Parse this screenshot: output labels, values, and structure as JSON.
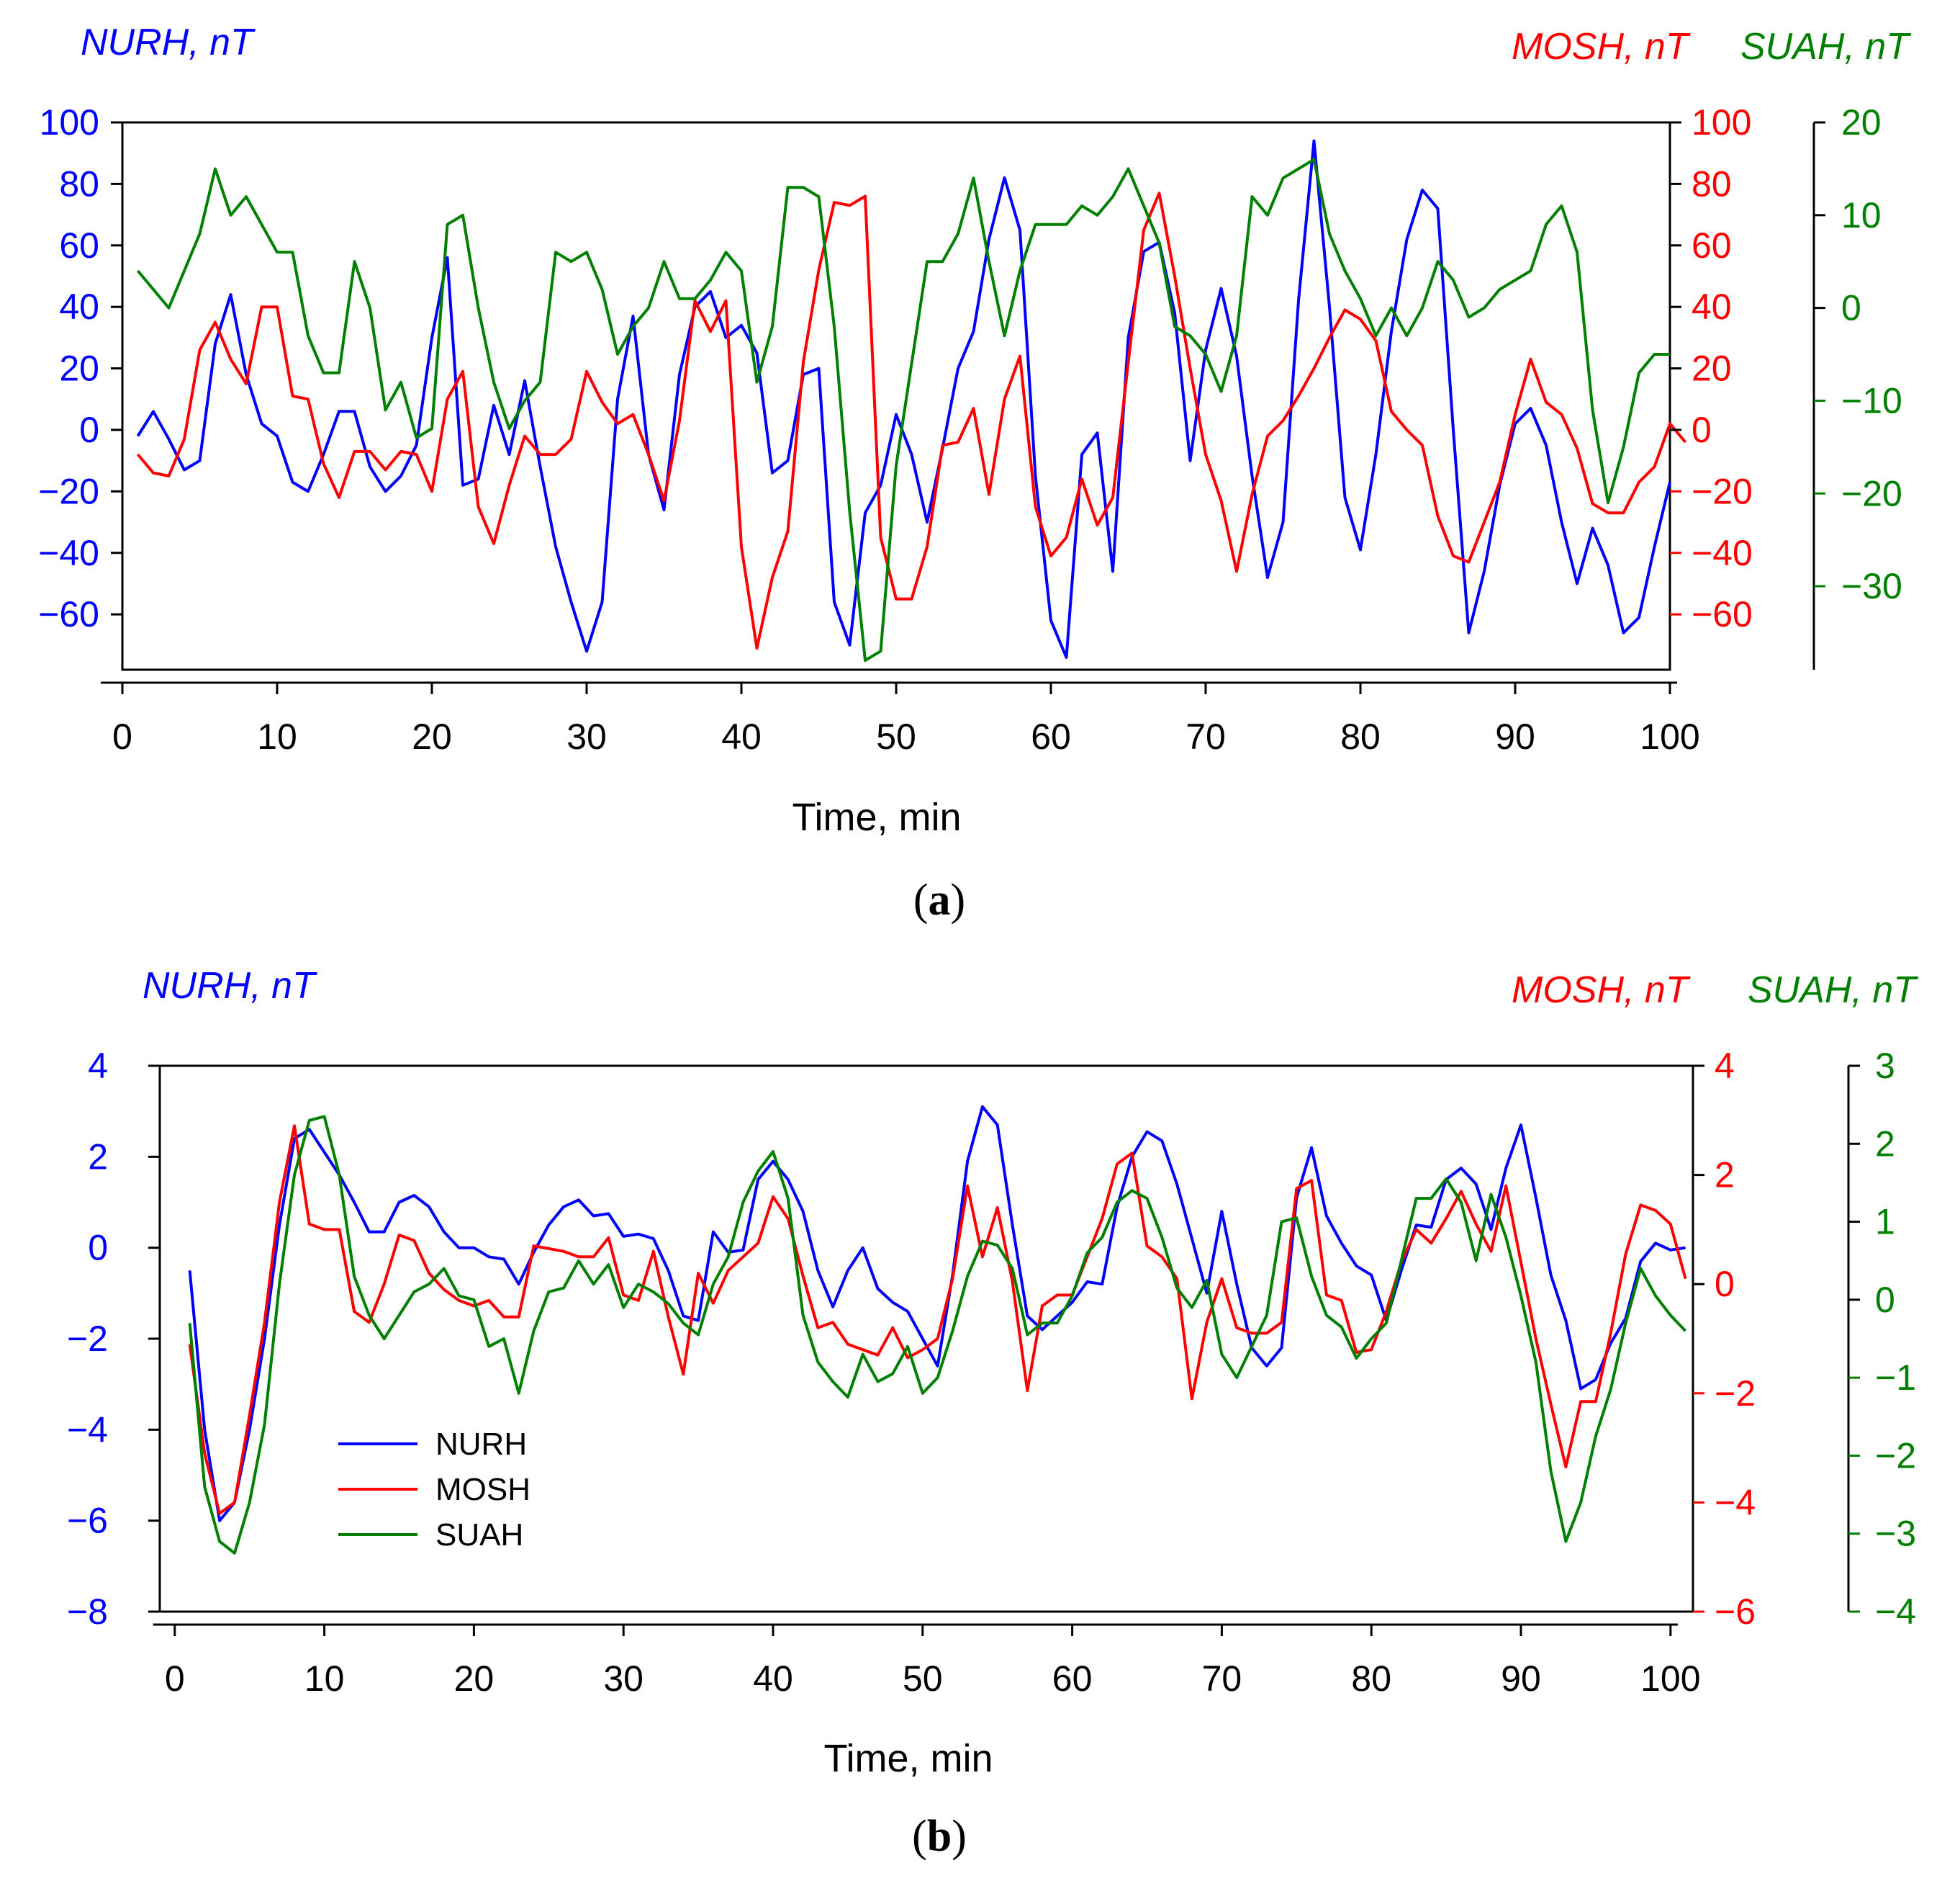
{
  "colors": {
    "NURH": "#0000ff",
    "MOSH": "#ff0000",
    "SUAH": "#008000",
    "axis": "#000000"
  },
  "chart_data": [
    {
      "type": "line",
      "panel_label": "a",
      "xlabel": "Time, min",
      "xlim": [
        0,
        100
      ],
      "x_ticks": [
        0,
        10,
        20,
        30,
        40,
        50,
        60,
        70,
        80,
        90,
        100
      ],
      "axes": {
        "left": {
          "series": "NURH",
          "label": "NURH, nT",
          "ylim": [
            -78,
            100
          ],
          "ticks": [
            -60,
            -40,
            -20,
            0,
            20,
            40,
            60,
            80,
            100
          ]
        },
        "right1": {
          "series": "MOSH",
          "label": "MOSH, nT",
          "ylim": [
            -78,
            100
          ],
          "ticks": [
            -60,
            -40,
            -20,
            0,
            20,
            40,
            60,
            80,
            100
          ]
        },
        "right2": {
          "series": "SUAH",
          "label": "SUAH, nT",
          "ylim": [
            -39,
            20
          ],
          "ticks": [
            -30,
            -20,
            -10,
            0,
            10,
            20
          ]
        }
      },
      "series": [
        {
          "name": "NURH",
          "axis": "left",
          "x_start": 1,
          "values": [
            -2,
            6,
            -3,
            -13,
            -10,
            28,
            44,
            18,
            2,
            -2,
            -17,
            -20,
            -8,
            6,
            6,
            -12,
            -20,
            -15,
            -5,
            30,
            56,
            -18,
            -16,
            8,
            -8,
            16,
            -12,
            -38,
            -56,
            -72,
            -56,
            10,
            37,
            -8,
            -26,
            18,
            40,
            45,
            30,
            34,
            25,
            -14,
            -10,
            18,
            20,
            -56,
            -70,
            -27,
            -18,
            5,
            -8,
            -30,
            -6,
            20,
            32,
            62,
            82,
            65,
            -15,
            -62,
            -74,
            -8,
            -1,
            -46,
            30,
            58,
            61,
            38,
            -10,
            26,
            46,
            24,
            -15,
            -48,
            -30,
            42,
            94,
            40,
            -22,
            -39,
            -8,
            32,
            62,
            78,
            72,
            0,
            -66,
            -46,
            -18,
            2,
            7,
            -5,
            -30,
            -50,
            -32,
            -44,
            -66,
            -61,
            -38,
            -17
          ]
        },
        {
          "name": "MOSH",
          "axis": "right1",
          "x_start": 1,
          "values": [
            -8,
            -14,
            -15,
            -3,
            26,
            35,
            23,
            15,
            40,
            40,
            11,
            10,
            -11,
            -22,
            -7,
            -7,
            -13,
            -7,
            -8,
            -20,
            10,
            19,
            -25,
            -37,
            -18,
            -2,
            -8,
            -8,
            -3,
            19,
            9,
            2,
            5,
            -8,
            -23,
            3,
            42,
            32,
            42,
            -38,
            -71,
            -48,
            -33,
            22,
            52,
            74,
            73,
            76,
            -35,
            -55,
            -55,
            -38,
            -5,
            -4,
            7,
            -21,
            10,
            24,
            -25,
            -41,
            -35,
            -16,
            -31,
            -22,
            22,
            65,
            77,
            50,
            20,
            -8,
            -23,
            -46,
            -21,
            -2,
            3,
            11,
            20,
            30,
            39,
            36,
            29,
            6,
            0,
            -5,
            -28,
            -41,
            -43,
            -30,
            -17,
            5,
            23,
            9,
            5,
            -6,
            -24,
            -27,
            -27,
            -17,
            -12,
            2,
            -4
          ]
        },
        {
          "name": "SUAH",
          "axis": "right2",
          "x_start": 1,
          "values": [
            4,
            2,
            0,
            4,
            8,
            15,
            10,
            12,
            9,
            6,
            6,
            -3,
            -7,
            -7,
            5,
            0,
            -11,
            -8,
            -14,
            -13,
            9,
            10,
            0,
            -8,
            -13,
            -10,
            -8,
            6,
            5,
            6,
            2,
            -5,
            -2,
            0,
            5,
            1,
            1,
            3,
            6,
            4,
            -8,
            -2,
            13,
            13,
            12,
            -2,
            -22,
            -38,
            -37,
            -17,
            -6,
            5,
            5,
            8,
            14,
            5,
            -3,
            4,
            9,
            9,
            9,
            11,
            10,
            12,
            15,
            11,
            7,
            -2,
            -3,
            -5,
            -9,
            -3,
            12,
            10,
            14,
            15,
            16,
            8,
            4,
            1,
            -3,
            0,
            -3,
            0,
            5,
            3,
            -1,
            0,
            2,
            3,
            4,
            9,
            11,
            6,
            -11,
            -21,
            -15,
            -7,
            -5,
            -5
          ]
        }
      ],
      "legend": null
    },
    {
      "type": "line",
      "panel_label": "b",
      "xlabel": "Time, min",
      "xlim": [
        -1,
        101.5
      ],
      "x_ticks": [
        0,
        10,
        20,
        30,
        40,
        50,
        60,
        70,
        80,
        90,
        100
      ],
      "axes": {
        "left": {
          "series": "NURH",
          "label": "NURH, nT",
          "ylim": [
            -8,
            4
          ],
          "ticks": [
            -8,
            -6,
            -4,
            -2,
            0,
            2,
            4
          ]
        },
        "right1": {
          "series": "MOSH",
          "label": "MOSH, nT",
          "ylim": [
            -6,
            4
          ],
          "ticks": [
            -6,
            -4,
            -2,
            0,
            2,
            4
          ]
        },
        "right2": {
          "series": "SUAH",
          "label": "SUAH, nT",
          "ylim": [
            -4,
            3
          ],
          "ticks": [
            -4,
            -3,
            -2,
            -1,
            0,
            1,
            2,
            3
          ]
        }
      },
      "series": [
        {
          "name": "NURH",
          "axis": "left",
          "x_start": 1,
          "values": [
            -0.5,
            -4,
            -6,
            -5.6,
            -4,
            -2,
            0.5,
            2.4,
            2.6,
            2.1,
            1.6,
            1,
            0.35,
            0.35,
            1,
            1.15,
            0.9,
            0.35,
            0,
            0,
            -0.2,
            -0.25,
            -0.8,
            -0.1,
            0.5,
            0.9,
            1.05,
            0.7,
            0.75,
            0.25,
            0.3,
            0.2,
            -0.5,
            -1.5,
            -1.6,
            0.35,
            -0.1,
            -0.05,
            1.5,
            1.9,
            1.5,
            0.8,
            -0.5,
            -1.3,
            -0.5,
            0,
            -0.9,
            -1.2,
            -1.4,
            -2,
            -2.6,
            -0.6,
            1.9,
            3.1,
            2.7,
            0.5,
            -1.5,
            -1.8,
            -1.5,
            -1.2,
            -0.75,
            -0.8,
            0.9,
            2,
            2.55,
            2.35,
            1.4,
            0.2,
            -1,
            0.8,
            -0.8,
            -2.2,
            -2.6,
            -2.2,
            1.1,
            2.2,
            0.7,
            0.1,
            -0.4,
            -0.6,
            -1.6,
            -0.5,
            0.5,
            0.45,
            1.5,
            1.75,
            1.4,
            0.4,
            1.75,
            2.7,
            1.1,
            -0.6,
            -1.6,
            -3.1,
            -2.9,
            -2.1,
            -1.55,
            -0.3,
            0.1,
            -0.05,
            0
          ]
        },
        {
          "name": "MOSH",
          "axis": "right1",
          "x_start": 1,
          "values": [
            -1.1,
            -3.1,
            -4.2,
            -4,
            -2.4,
            -0.7,
            1.5,
            2.9,
            1.1,
            1,
            1,
            -0.5,
            -0.7,
            0,
            0.9,
            0.8,
            0.2,
            -0.1,
            -0.3,
            -0.4,
            -0.3,
            -0.6,
            -0.6,
            0.7,
            0.65,
            0.6,
            0.5,
            0.5,
            0.85,
            -0.2,
            -0.3,
            0.6,
            -0.6,
            -1.65,
            0.2,
            -0.35,
            0.25,
            0.5,
            0.75,
            1.6,
            1.2,
            0.15,
            -0.8,
            -0.7,
            -1.1,
            -1.2,
            -1.3,
            -0.8,
            -1.35,
            -1.2,
            -1,
            0.1,
            1.8,
            0.5,
            1.4,
            0.05,
            -1.95,
            -0.4,
            -0.2,
            -0.2,
            0.5,
            1.2,
            2.2,
            2.4,
            0.7,
            0.5,
            0.1,
            -2.1,
            -0.7,
            0.1,
            -0.8,
            -0.9,
            -0.9,
            -0.7,
            1.75,
            1.9,
            -0.2,
            -0.3,
            -1.25,
            -1.2,
            -0.5,
            0.4,
            1,
            0.75,
            1.2,
            1.7,
            1.1,
            0.6,
            1.8,
            0.4,
            -1,
            -2.2,
            -3.35,
            -2.15,
            -2.15,
            -0.9,
            0.55,
            1.45,
            1.35,
            1.1,
            0.1
          ]
        },
        {
          "name": "SUAH",
          "axis": "right2",
          "x_start": 1,
          "values": [
            -0.3,
            -2.4,
            -3.1,
            -3.25,
            -2.6,
            -1.6,
            0.2,
            1.6,
            2.3,
            2.35,
            1.6,
            0.3,
            -0.2,
            -0.5,
            -0.2,
            0.1,
            0.2,
            0.4,
            0.05,
            0,
            -0.6,
            -0.5,
            -1.2,
            -0.4,
            0.1,
            0.15,
            0.5,
            0.2,
            0.45,
            -0.1,
            0.2,
            0.1,
            -0.05,
            -0.3,
            -0.45,
            0.2,
            0.55,
            1.25,
            1.65,
            1.9,
            1.3,
            -0.2,
            -0.8,
            -1.05,
            -1.25,
            -0.7,
            -1.05,
            -0.95,
            -0.6,
            -1.2,
            -1,
            -0.4,
            0.3,
            0.75,
            0.7,
            0.4,
            -0.45,
            -0.3,
            -0.3,
            0.05,
            0.6,
            0.8,
            1.25,
            1.4,
            1.3,
            0.8,
            0.15,
            -0.1,
            0.25,
            -0.7,
            -1,
            -0.6,
            -0.2,
            1,
            1.05,
            0.3,
            -0.2,
            -0.35,
            -0.75,
            -0.5,
            -0.3,
            0.5,
            1.3,
            1.3,
            1.55,
            1.25,
            0.5,
            1.35,
            0.8,
            0.05,
            -0.8,
            -2.2,
            -3.1,
            -2.6,
            -1.75,
            -1.15,
            -0.3,
            0.4,
            0.05,
            -0.2,
            -0.4
          ]
        }
      ],
      "legend": {
        "position": "lower-left",
        "entries": [
          "NURH",
          "MOSH",
          "SUAH"
        ]
      }
    }
  ]
}
